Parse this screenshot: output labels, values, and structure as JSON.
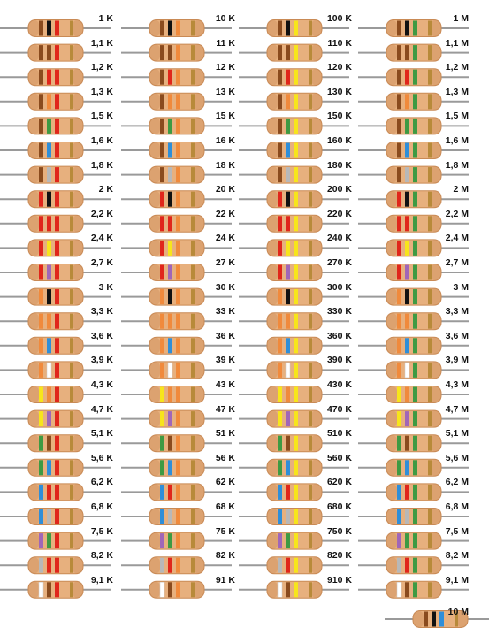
{
  "colors": {
    "black": "#111111",
    "brown": "#8a4b1e",
    "red": "#e0261b",
    "orange": "#f08a3c",
    "yellow": "#f7e51b",
    "green": "#3e9a43",
    "blue": "#2f8ed8",
    "violet": "#a066b8",
    "grey": "#b8b8b8",
    "white": "#ffffff",
    "gold": "#b88a3a",
    "body": "#e7b07e",
    "body_dark": "#c98a55",
    "lead": "#9a9a9a"
  },
  "chart_data": {
    "type": "table",
    "columns": [
      {
        "resistors": [
          {
            "label": "1 K",
            "bands": [
              "brown",
              "black",
              "red"
            ]
          },
          {
            "label": "1,1 K",
            "bands": [
              "brown",
              "brown",
              "red"
            ]
          },
          {
            "label": "1,2 K",
            "bands": [
              "brown",
              "red",
              "red"
            ]
          },
          {
            "label": "1,3 K",
            "bands": [
              "brown",
              "orange",
              "red"
            ]
          },
          {
            "label": "1,5 K",
            "bands": [
              "brown",
              "green",
              "red"
            ]
          },
          {
            "label": "1,6 K",
            "bands": [
              "brown",
              "blue",
              "red"
            ]
          },
          {
            "label": "1,8 K",
            "bands": [
              "brown",
              "grey",
              "red"
            ]
          },
          {
            "label": "2 K",
            "bands": [
              "red",
              "black",
              "red"
            ]
          },
          {
            "label": "2,2 K",
            "bands": [
              "red",
              "red",
              "red"
            ]
          },
          {
            "label": "2,4 K",
            "bands": [
              "red",
              "yellow",
              "red"
            ]
          },
          {
            "label": "2,7 K",
            "bands": [
              "red",
              "violet",
              "red"
            ]
          },
          {
            "label": "3 K",
            "bands": [
              "orange",
              "black",
              "red"
            ]
          },
          {
            "label": "3,3 K",
            "bands": [
              "orange",
              "orange",
              "red"
            ]
          },
          {
            "label": "3,6 K",
            "bands": [
              "orange",
              "blue",
              "red"
            ]
          },
          {
            "label": "3,9 K",
            "bands": [
              "orange",
              "white",
              "red"
            ]
          },
          {
            "label": "4,3 K",
            "bands": [
              "yellow",
              "orange",
              "red"
            ]
          },
          {
            "label": "4,7 K",
            "bands": [
              "yellow",
              "violet",
              "red"
            ]
          },
          {
            "label": "5,1 K",
            "bands": [
              "green",
              "brown",
              "red"
            ]
          },
          {
            "label": "5,6 K",
            "bands": [
              "green",
              "blue",
              "red"
            ]
          },
          {
            "label": "6,2 K",
            "bands": [
              "blue",
              "red",
              "red"
            ]
          },
          {
            "label": "6,8 K",
            "bands": [
              "blue",
              "grey",
              "red"
            ]
          },
          {
            "label": "7,5 K",
            "bands": [
              "violet",
              "green",
              "red"
            ]
          },
          {
            "label": "8,2 K",
            "bands": [
              "grey",
              "red",
              "red"
            ]
          },
          {
            "label": "9,1 K",
            "bands": [
              "white",
              "brown",
              "red"
            ]
          }
        ]
      },
      {
        "resistors": [
          {
            "label": "10 K",
            "bands": [
              "brown",
              "black",
              "orange"
            ]
          },
          {
            "label": "11 K",
            "bands": [
              "brown",
              "brown",
              "orange"
            ]
          },
          {
            "label": "12 K",
            "bands": [
              "brown",
              "red",
              "orange"
            ]
          },
          {
            "label": "13 K",
            "bands": [
              "brown",
              "orange",
              "orange"
            ]
          },
          {
            "label": "15 K",
            "bands": [
              "brown",
              "green",
              "orange"
            ]
          },
          {
            "label": "16 K",
            "bands": [
              "brown",
              "blue",
              "orange"
            ]
          },
          {
            "label": "18 K",
            "bands": [
              "brown",
              "grey",
              "orange"
            ]
          },
          {
            "label": "20 K",
            "bands": [
              "red",
              "black",
              "orange"
            ]
          },
          {
            "label": "22 K",
            "bands": [
              "red",
              "red",
              "orange"
            ]
          },
          {
            "label": "24 K",
            "bands": [
              "red",
              "yellow",
              "orange"
            ]
          },
          {
            "label": "27 K",
            "bands": [
              "red",
              "violet",
              "orange"
            ]
          },
          {
            "label": "30 K",
            "bands": [
              "orange",
              "black",
              "orange"
            ]
          },
          {
            "label": "33 K",
            "bands": [
              "orange",
              "orange",
              "orange"
            ]
          },
          {
            "label": "36 K",
            "bands": [
              "orange",
              "blue",
              "orange"
            ]
          },
          {
            "label": "39 K",
            "bands": [
              "orange",
              "white",
              "orange"
            ]
          },
          {
            "label": "43 K",
            "bands": [
              "yellow",
              "orange",
              "orange"
            ]
          },
          {
            "label": "47 K",
            "bands": [
              "yellow",
              "violet",
              "orange"
            ]
          },
          {
            "label": "51 K",
            "bands": [
              "green",
              "brown",
              "orange"
            ]
          },
          {
            "label": "56 K",
            "bands": [
              "green",
              "blue",
              "orange"
            ]
          },
          {
            "label": "62 K",
            "bands": [
              "blue",
              "red",
              "orange"
            ]
          },
          {
            "label": "68 K",
            "bands": [
              "blue",
              "grey",
              "orange"
            ]
          },
          {
            "label": "75 K",
            "bands": [
              "violet",
              "green",
              "orange"
            ]
          },
          {
            "label": "82 K",
            "bands": [
              "grey",
              "red",
              "orange"
            ]
          },
          {
            "label": "91 K",
            "bands": [
              "white",
              "brown",
              "orange"
            ]
          }
        ]
      },
      {
        "resistors": [
          {
            "label": "100 K",
            "bands": [
              "brown",
              "black",
              "yellow"
            ]
          },
          {
            "label": "110 K",
            "bands": [
              "brown",
              "brown",
              "yellow"
            ]
          },
          {
            "label": "120 K",
            "bands": [
              "brown",
              "red",
              "yellow"
            ]
          },
          {
            "label": "130 K",
            "bands": [
              "brown",
              "orange",
              "yellow"
            ]
          },
          {
            "label": "150 K",
            "bands": [
              "brown",
              "green",
              "yellow"
            ]
          },
          {
            "label": "160 K",
            "bands": [
              "brown",
              "blue",
              "yellow"
            ]
          },
          {
            "label": "180 K",
            "bands": [
              "brown",
              "grey",
              "yellow"
            ]
          },
          {
            "label": "200 K",
            "bands": [
              "red",
              "black",
              "yellow"
            ]
          },
          {
            "label": "220 K",
            "bands": [
              "red",
              "red",
              "yellow"
            ]
          },
          {
            "label": "240 K",
            "bands": [
              "red",
              "yellow",
              "yellow"
            ]
          },
          {
            "label": "270 K",
            "bands": [
              "red",
              "violet",
              "yellow"
            ]
          },
          {
            "label": "300 K",
            "bands": [
              "orange",
              "black",
              "yellow"
            ]
          },
          {
            "label": "330 K",
            "bands": [
              "orange",
              "orange",
              "yellow"
            ]
          },
          {
            "label": "360 K",
            "bands": [
              "orange",
              "blue",
              "yellow"
            ]
          },
          {
            "label": "390 K",
            "bands": [
              "orange",
              "white",
              "yellow"
            ]
          },
          {
            "label": "430 K",
            "bands": [
              "yellow",
              "orange",
              "yellow"
            ]
          },
          {
            "label": "470 K",
            "bands": [
              "yellow",
              "violet",
              "yellow"
            ]
          },
          {
            "label": "510 K",
            "bands": [
              "green",
              "brown",
              "yellow"
            ]
          },
          {
            "label": "560 K",
            "bands": [
              "green",
              "blue",
              "yellow"
            ]
          },
          {
            "label": "620 K",
            "bands": [
              "blue",
              "red",
              "yellow"
            ]
          },
          {
            "label": "680 K",
            "bands": [
              "blue",
              "grey",
              "yellow"
            ]
          },
          {
            "label": "750 K",
            "bands": [
              "violet",
              "green",
              "yellow"
            ]
          },
          {
            "label": "820 K",
            "bands": [
              "grey",
              "red",
              "yellow"
            ]
          },
          {
            "label": "910 K",
            "bands": [
              "white",
              "brown",
              "yellow"
            ]
          }
        ]
      },
      {
        "resistors": [
          {
            "label": "1 M",
            "bands": [
              "brown",
              "black",
              "green"
            ]
          },
          {
            "label": "1,1 M",
            "bands": [
              "brown",
              "brown",
              "green"
            ]
          },
          {
            "label": "1,2 M",
            "bands": [
              "brown",
              "red",
              "green"
            ]
          },
          {
            "label": "1,3 M",
            "bands": [
              "brown",
              "orange",
              "green"
            ]
          },
          {
            "label": "1,5 M",
            "bands": [
              "brown",
              "green",
              "green"
            ]
          },
          {
            "label": "1,6 M",
            "bands": [
              "brown",
              "blue",
              "green"
            ]
          },
          {
            "label": "1,8 M",
            "bands": [
              "brown",
              "grey",
              "green"
            ]
          },
          {
            "label": "2 M",
            "bands": [
              "red",
              "black",
              "green"
            ]
          },
          {
            "label": "2,2 M",
            "bands": [
              "red",
              "red",
              "green"
            ]
          },
          {
            "label": "2,4 M",
            "bands": [
              "red",
              "yellow",
              "green"
            ]
          },
          {
            "label": "2,7 M",
            "bands": [
              "red",
              "violet",
              "green"
            ]
          },
          {
            "label": "3 M",
            "bands": [
              "orange",
              "black",
              "green"
            ]
          },
          {
            "label": "3,3 M",
            "bands": [
              "orange",
              "orange",
              "green"
            ]
          },
          {
            "label": "3,6 M",
            "bands": [
              "orange",
              "blue",
              "green"
            ]
          },
          {
            "label": "3,9 M",
            "bands": [
              "orange",
              "white",
              "green"
            ]
          },
          {
            "label": "4,3 M",
            "bands": [
              "yellow",
              "orange",
              "green"
            ]
          },
          {
            "label": "4,7 M",
            "bands": [
              "yellow",
              "violet",
              "green"
            ]
          },
          {
            "label": "5,1 M",
            "bands": [
              "green",
              "brown",
              "green"
            ]
          },
          {
            "label": "5,6 M",
            "bands": [
              "green",
              "blue",
              "green"
            ]
          },
          {
            "label": "6,2 M",
            "bands": [
              "blue",
              "red",
              "green"
            ]
          },
          {
            "label": "6,8 M",
            "bands": [
              "blue",
              "grey",
              "green"
            ]
          },
          {
            "label": "7,5 M",
            "bands": [
              "violet",
              "green",
              "green"
            ]
          },
          {
            "label": "8,2 M",
            "bands": [
              "grey",
              "red",
              "green"
            ]
          },
          {
            "label": "9,1 M",
            "bands": [
              "white",
              "brown",
              "green"
            ]
          },
          {
            "label": "10 M",
            "bands": [
              "brown",
              "black",
              "blue"
            ]
          }
        ]
      }
    ]
  }
}
